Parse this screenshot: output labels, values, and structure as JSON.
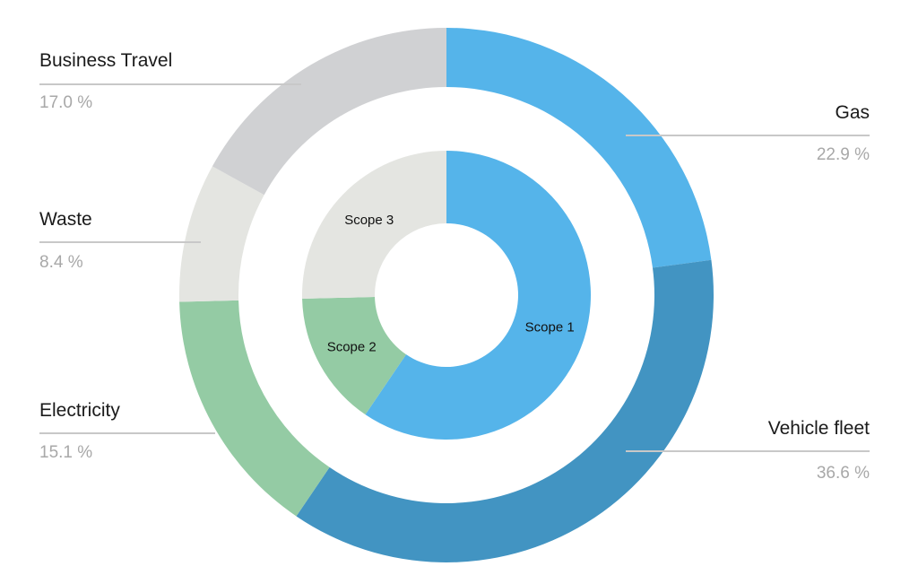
{
  "chart_data": {
    "type": "pie",
    "variant": "nested-donut",
    "title": "",
    "outer_ring": [
      {
        "name": "Gas",
        "value_label": "22.9 %",
        "value": 22.9,
        "color": "#55b4ea"
      },
      {
        "name": "Vehicle fleet",
        "value_label": "36.6 %",
        "value": 36.6,
        "color": "#4294c2"
      },
      {
        "name": "Electricity",
        "value_label": "15.1 %",
        "value": 15.1,
        "color": "#94cba4"
      },
      {
        "name": "Waste",
        "value_label": "8.4 %",
        "value": 8.4,
        "color": "#e4e5e1"
      },
      {
        "name": "Business Travel",
        "value_label": "17.0 %",
        "value": 17.0,
        "color": "#d0d1d3"
      }
    ],
    "inner_ring": [
      {
        "name": "Scope 1",
        "value": 59.5,
        "color": "#55b4ea"
      },
      {
        "name": "Scope 2",
        "value": 15.1,
        "color": "#94cba4"
      },
      {
        "name": "Scope 3",
        "value": 25.4,
        "color": "#e4e5e1"
      }
    ]
  }
}
